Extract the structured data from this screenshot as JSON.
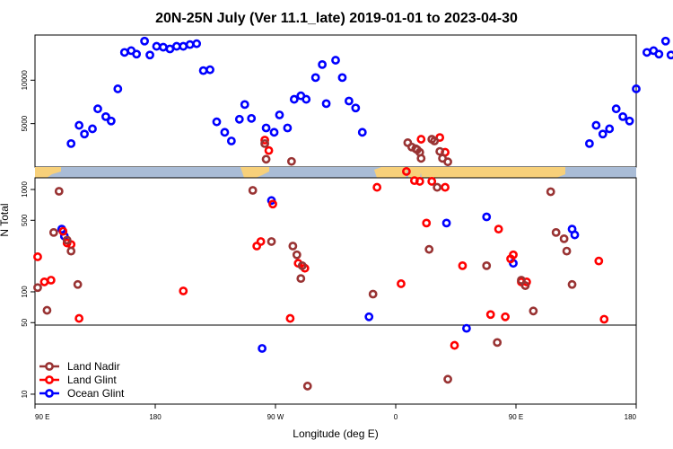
{
  "chart_data": {
    "type": "scatter",
    "title": "20N-25N July (Ver 11.1_late)   2019-01-01 to 2023-04-30",
    "xlabel": "Longitude (deg E)",
    "ylabel": "N Total",
    "x_ticks": [
      {
        "lon": 90,
        "label": "90 E"
      },
      {
        "lon": 180,
        "label": "180"
      },
      {
        "lon": 270,
        "label": "90 W"
      },
      {
        "lon": 360,
        "label": "0"
      },
      {
        "lon": 450,
        "label": "90 E"
      },
      {
        "lon": 540,
        "label": "180"
      }
    ],
    "xlim": [
      90,
      540
    ],
    "upper_panel": {
      "scale": "linear",
      "ylim": [
        0,
        15200
      ],
      "ticks": [
        5000,
        10000
      ]
    },
    "lower_panel": {
      "scale": "log",
      "ylim": [
        8,
        1300
      ],
      "ticks": [
        10,
        50,
        100,
        500,
        1000
      ]
    },
    "reference_line": 50,
    "legend": {
      "position": "bottom-left",
      "entries": [
        {
          "name": "Land Nadir",
          "color": "#993333"
        },
        {
          "name": "Land Glint",
          "color": "#ff0000"
        },
        {
          "name": "Ocean Glint",
          "color": "#0000ff"
        }
      ]
    },
    "series": [
      {
        "name": "Ocean Glint",
        "color": "#0000ff",
        "upper": [
          [
            117,
            2700
          ],
          [
            123,
            4800
          ],
          [
            127,
            3800
          ],
          [
            133,
            4400
          ],
          [
            137,
            6700
          ],
          [
            143,
            5800
          ],
          [
            147,
            5300
          ],
          [
            152,
            9000
          ],
          [
            157,
            13200
          ],
          [
            162,
            13400
          ],
          [
            166,
            13000
          ],
          [
            172,
            14500
          ],
          [
            176,
            12900
          ],
          [
            181,
            13900
          ],
          [
            186,
            13800
          ],
          [
            191,
            13600
          ],
          [
            196,
            13900
          ],
          [
            201,
            13900
          ],
          [
            206,
            14100
          ],
          [
            211,
            14200
          ],
          [
            216,
            11100
          ],
          [
            221,
            11200
          ],
          [
            226,
            5200
          ],
          [
            232,
            4000
          ],
          [
            237,
            3000
          ],
          [
            243,
            5500
          ],
          [
            247,
            7200
          ],
          [
            252,
            5600
          ],
          [
            263,
            4500
          ],
          [
            269,
            4000
          ],
          [
            273,
            6000
          ],
          [
            279,
            4500
          ],
          [
            284,
            7800
          ],
          [
            289,
            8200
          ],
          [
            293,
            7800
          ],
          [
            300,
            10300
          ],
          [
            305,
            11800
          ],
          [
            308,
            7300
          ],
          [
            315,
            12300
          ],
          [
            320,
            10300
          ],
          [
            325,
            7600
          ],
          [
            330,
            6800
          ],
          [
            335,
            4000
          ],
          [
            505,
            2700
          ],
          [
            510,
            4800
          ],
          [
            515,
            3800
          ],
          [
            520,
            4400
          ],
          [
            525,
            6700
          ],
          [
            530,
            5800
          ],
          [
            535,
            5300
          ],
          [
            540,
            9000
          ],
          [
            548,
            13200
          ],
          [
            553,
            13400
          ],
          [
            557,
            13000
          ],
          [
            562,
            14500
          ],
          [
            566,
            12900
          ]
        ],
        "lower": [
          [
            110,
            410
          ],
          [
            112,
            350
          ],
          [
            260,
            28
          ],
          [
            267,
            780
          ],
          [
            340,
            57
          ],
          [
            398,
            470
          ],
          [
            413,
            44
          ],
          [
            428,
            540
          ],
          [
            448,
            190
          ],
          [
            492,
            410
          ],
          [
            494,
            360
          ]
        ]
      },
      {
        "name": "Land Glint",
        "color": "#ff0000",
        "upper": [
          [
            262,
            3100
          ],
          [
            265,
            1900
          ],
          [
            379,
            3200
          ],
          [
            393,
            3400
          ],
          [
            397,
            1700
          ]
        ],
        "lower": [
          [
            92,
            220
          ],
          [
            97,
            125
          ],
          [
            102,
            130
          ],
          [
            111,
            390
          ],
          [
            114,
            300
          ],
          [
            117,
            290
          ],
          [
            123,
            55
          ],
          [
            201,
            102
          ],
          [
            256,
            280
          ],
          [
            259,
            310
          ],
          [
            268,
            720
          ],
          [
            281,
            55
          ],
          [
            287,
            190
          ],
          [
            292,
            170
          ],
          [
            346,
            1050
          ],
          [
            364,
            120
          ],
          [
            368,
            1500
          ],
          [
            374,
            1220
          ],
          [
            378,
            1200
          ],
          [
            383,
            470
          ],
          [
            387,
            1200
          ],
          [
            397,
            1050
          ],
          [
            404,
            30
          ],
          [
            410,
            180
          ],
          [
            431,
            60
          ],
          [
            437,
            410
          ],
          [
            442,
            57
          ],
          [
            446,
            210
          ],
          [
            448,
            230
          ],
          [
            454,
            125
          ],
          [
            458,
            125
          ],
          [
            512,
            200
          ],
          [
            516,
            54
          ]
        ]
      },
      {
        "name": "Land Nadir",
        "color": "#993333",
        "upper": [
          [
            262,
            2700
          ],
          [
            263,
            900
          ],
          [
            282,
            650
          ],
          [
            369,
            2800
          ],
          [
            372,
            2300
          ],
          [
            375,
            2100
          ],
          [
            376,
            2000
          ],
          [
            378,
            1700
          ],
          [
            379,
            1000
          ],
          [
            387,
            3200
          ],
          [
            389,
            3000
          ],
          [
            393,
            1800
          ],
          [
            395,
            1000
          ],
          [
            399,
            600
          ]
        ],
        "lower": [
          [
            92,
            110
          ],
          [
            99,
            66
          ],
          [
            104,
            380
          ],
          [
            108,
            960
          ],
          [
            114,
            320
          ],
          [
            117,
            250
          ],
          [
            122,
            118
          ],
          [
            253,
            980
          ],
          [
            267,
            310
          ],
          [
            283,
            280
          ],
          [
            286,
            230
          ],
          [
            290,
            180
          ],
          [
            289,
            135
          ],
          [
            294,
            12
          ],
          [
            343,
            95
          ],
          [
            391,
            1050
          ],
          [
            385,
            260
          ],
          [
            399,
            14
          ],
          [
            428,
            180
          ],
          [
            436,
            32
          ],
          [
            454,
            130
          ],
          [
            457,
            115
          ],
          [
            463,
            65
          ],
          [
            476,
            950
          ],
          [
            480,
            380
          ],
          [
            486,
            330
          ],
          [
            488,
            250
          ],
          [
            492,
            118
          ]
        ]
      }
    ]
  }
}
